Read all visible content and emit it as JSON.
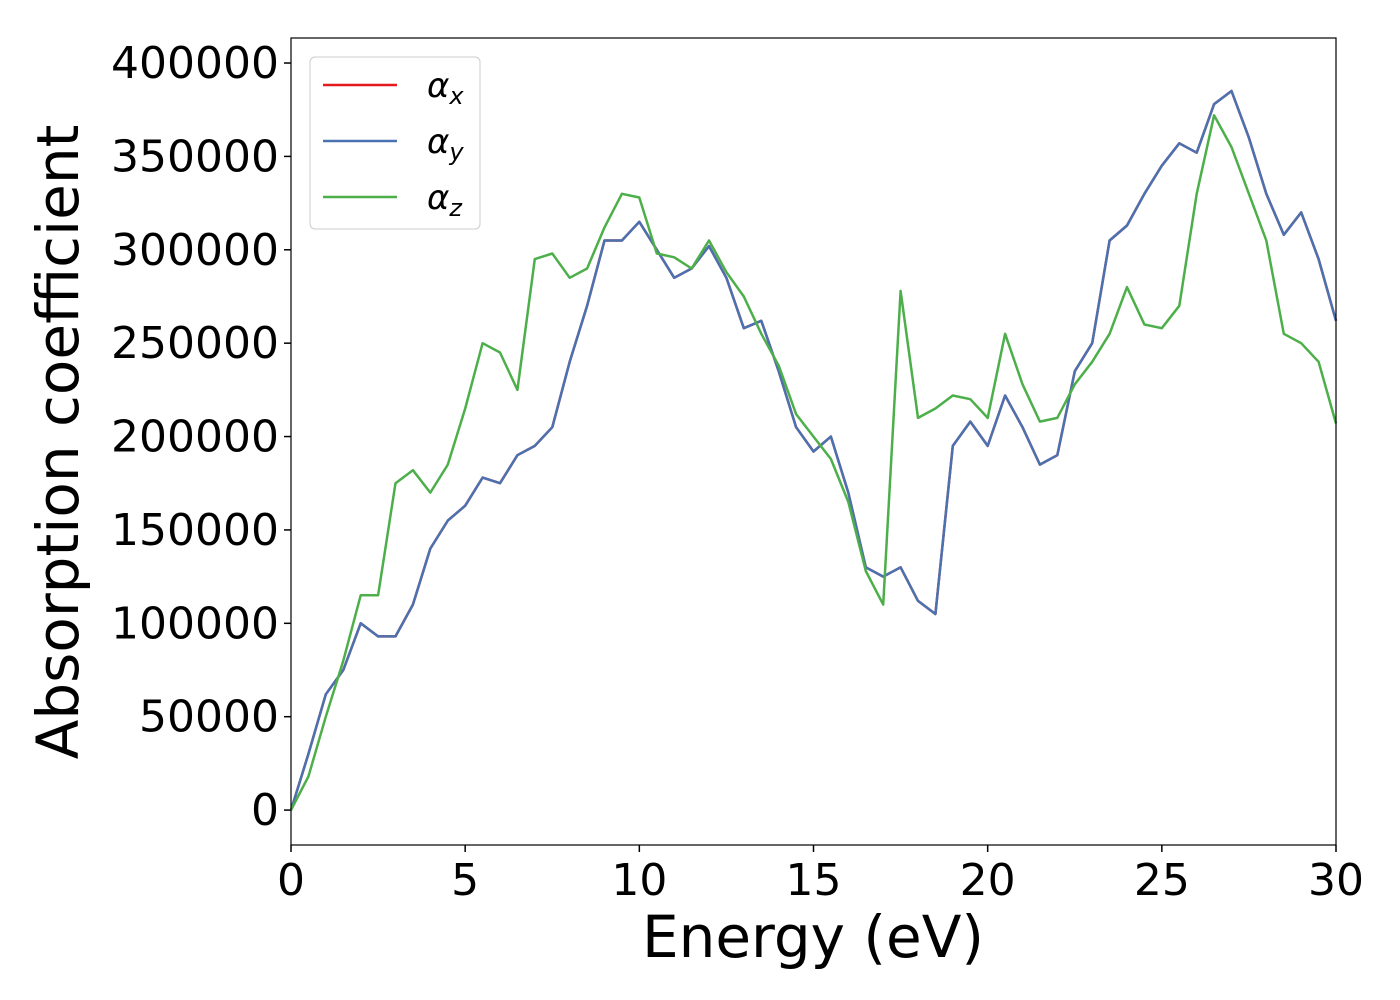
{
  "chart_data": {
    "type": "line",
    "xlabel": "Energy (eV)",
    "ylabel": "Absorption coefficient",
    "x": [
      0,
      0.5,
      1,
      1.5,
      2,
      2.5,
      3,
      3.5,
      4,
      4.5,
      5,
      5.5,
      6,
      6.5,
      7,
      7.5,
      8,
      8.5,
      9,
      9.5,
      10,
      10.5,
      11,
      11.5,
      12,
      12.5,
      13,
      13.5,
      14,
      14.5,
      15,
      15.5,
      16,
      16.5,
      17,
      17.5,
      18,
      18.5,
      19,
      19.5,
      20,
      20.5,
      21,
      21.5,
      22,
      22.5,
      23,
      23.5,
      24,
      24.5,
      25,
      25.5,
      26,
      26.5,
      27,
      27.5,
      28,
      28.5,
      29,
      29.5,
      30
    ],
    "series": [
      {
        "name": "αx",
        "color": "#e41a1c",
        "values": [
          0,
          30000,
          62000,
          75000,
          100000,
          93000,
          93000,
          110000,
          140000,
          155000,
          163000,
          178000,
          175000,
          190000,
          195000,
          205000,
          240000,
          270000,
          305000,
          305000,
          315000,
          300000,
          285000,
          290000,
          302000,
          285000,
          258000,
          262000,
          235000,
          205000,
          192000,
          200000,
          170000,
          130000,
          125000,
          130000,
          112000,
          105000,
          195000,
          208000,
          195000,
          222000,
          205000,
          185000,
          190000,
          235000,
          250000,
          305000,
          313000,
          330000,
          345000,
          357000,
          352000,
          378000,
          385000,
          360000,
          330000,
          308000,
          320000,
          295000,
          262000
        ]
      },
      {
        "name": "αy",
        "color": "#4a72b0",
        "values": [
          0,
          30000,
          62000,
          75000,
          100000,
          93000,
          93000,
          110000,
          140000,
          155000,
          163000,
          178000,
          175000,
          190000,
          195000,
          205000,
          240000,
          270000,
          305000,
          305000,
          315000,
          300000,
          285000,
          290000,
          302000,
          285000,
          258000,
          262000,
          235000,
          205000,
          192000,
          200000,
          170000,
          130000,
          125000,
          130000,
          112000,
          105000,
          195000,
          208000,
          195000,
          222000,
          205000,
          185000,
          190000,
          235000,
          250000,
          305000,
          313000,
          330000,
          345000,
          357000,
          352000,
          378000,
          385000,
          360000,
          330000,
          308000,
          320000,
          295000,
          262000
        ]
      },
      {
        "name": "αz",
        "color": "#4daf4a",
        "values": [
          0,
          18000,
          50000,
          80000,
          115000,
          115000,
          175000,
          182000,
          170000,
          185000,
          215000,
          250000,
          245000,
          225000,
          295000,
          298000,
          285000,
          290000,
          312000,
          330000,
          328000,
          298000,
          296000,
          290000,
          305000,
          288000,
          275000,
          255000,
          238000,
          212000,
          200000,
          188000,
          165000,
          128000,
          110000,
          278000,
          210000,
          215000,
          222000,
          220000,
          210000,
          255000,
          228000,
          208000,
          210000,
          228000,
          240000,
          255000,
          280000,
          260000,
          258000,
          270000,
          330000,
          372000,
          355000,
          330000,
          305000,
          255000,
          250000,
          240000,
          207000
        ]
      }
    ],
    "xlim": [
      0,
      30
    ],
    "xticks": [
      0,
      5,
      10,
      15,
      20,
      25,
      30
    ],
    "ylim": [
      -18700,
      413400
    ],
    "yticks": [
      0,
      50000,
      100000,
      150000,
      200000,
      250000,
      300000,
      350000,
      400000
    ],
    "grid": false,
    "legend": "upper left"
  }
}
